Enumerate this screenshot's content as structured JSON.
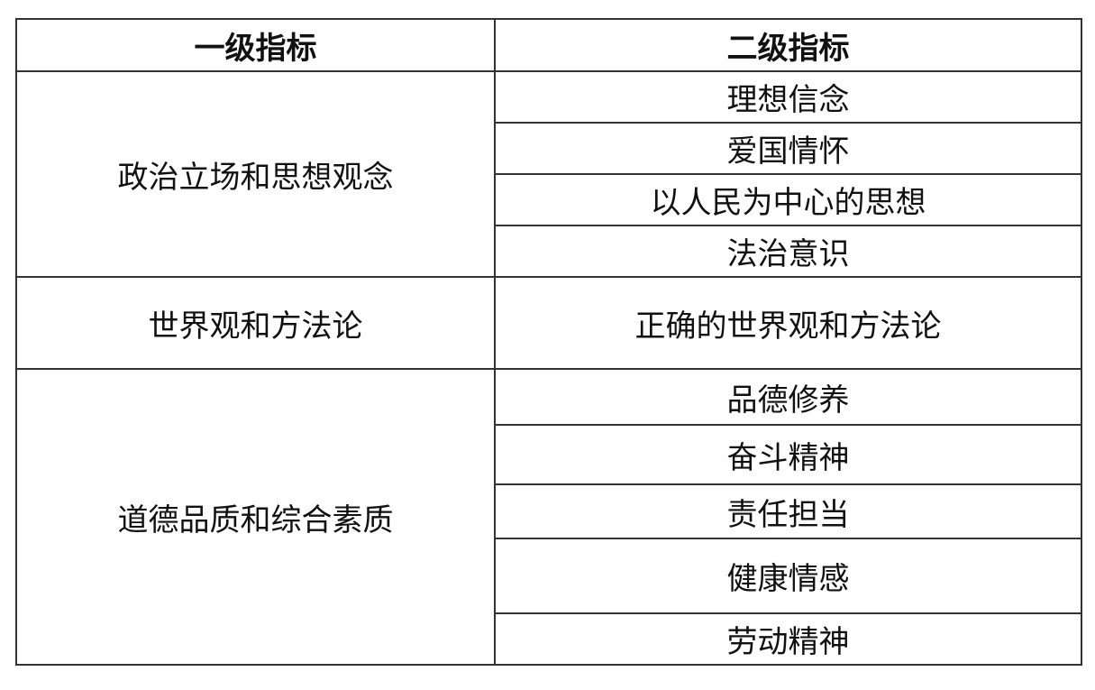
{
  "table": {
    "headers": [
      "一级指标",
      "二级指标"
    ],
    "groups": [
      {
        "primary": "政治立场和思想观念",
        "secondary": [
          "理想信念",
          "爱国情怀",
          "以人民为中心的思想",
          "法治意识"
        ]
      },
      {
        "primary": "世界观和方法论",
        "secondary": [
          "正确的世界观和方法论"
        ]
      },
      {
        "primary": "道德品质和综合素质",
        "secondary": [
          "品德修养",
          "奋斗精神",
          "责任担当",
          "健康情感",
          "劳动精神"
        ]
      }
    ]
  }
}
